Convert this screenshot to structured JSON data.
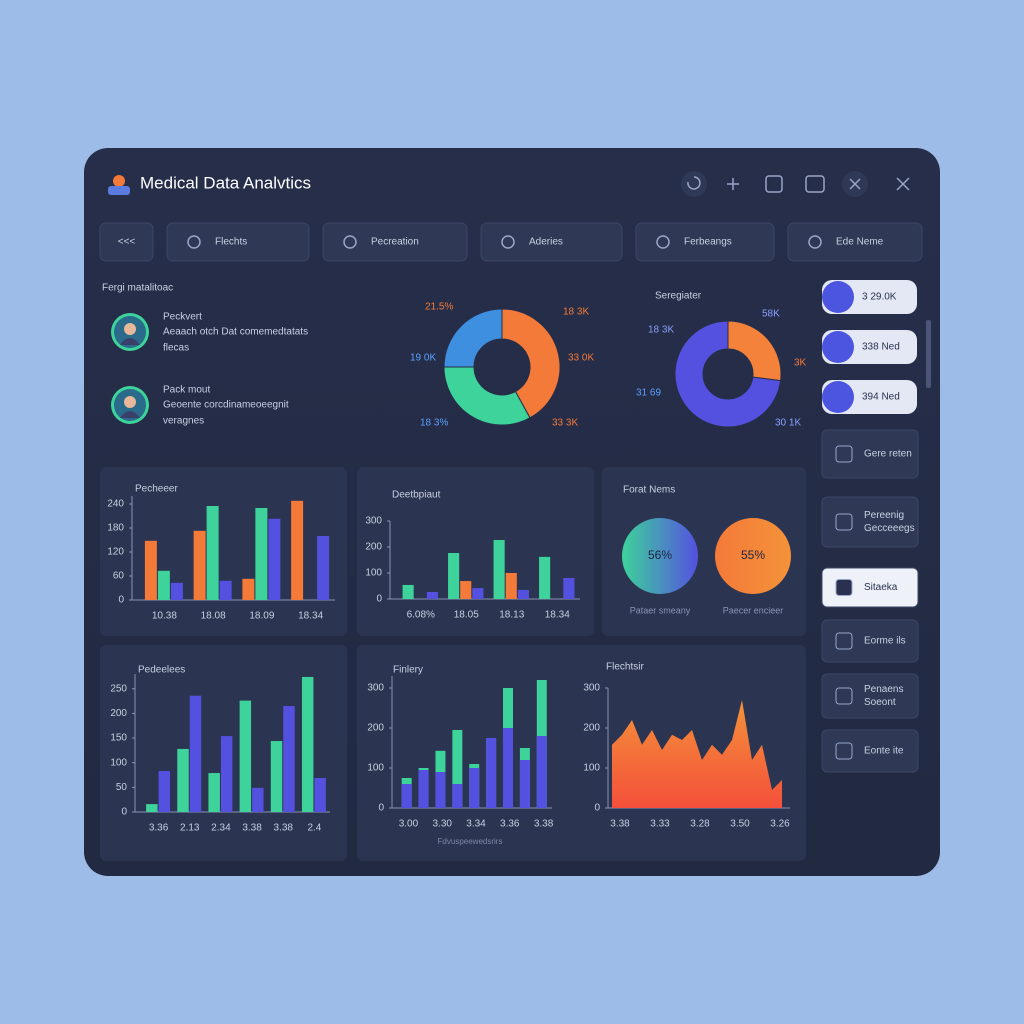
{
  "header": {
    "title": "Medical Data Analvtics"
  },
  "toolbar": [
    "<<<",
    "Flechts",
    "Pecreation",
    "Aderies",
    "Ferbeangs",
    "Ede Neme"
  ],
  "patients": {
    "title": "Fergi matalitoac",
    "items": [
      {
        "name": "Peckvert",
        "lines": [
          "Aeaach otch Dat comemedtatats",
          "flecas"
        ]
      },
      {
        "name": "Pack mout",
        "lines": [
          "Geoente corcdinameoeegnit",
          "veragnes"
        ]
      }
    ]
  },
  "side": {
    "pills": [
      "3 29.0K",
      "338 Ned",
      "394 Ned"
    ],
    "buttons": [
      [
        "Gere reten"
      ],
      [
        "Pereenig",
        "Gecceeegs"
      ],
      [
        "Sitaeka"
      ],
      [
        "Eorme ils"
      ],
      [
        "Penaens",
        "Soeont"
      ],
      [
        "Eonte ite"
      ]
    ],
    "active": 2
  },
  "chart_data": [
    {
      "type": "donut",
      "values": [
        42,
        33,
        25
      ],
      "colors": [
        "#f47a3a",
        "#3ed39a",
        "#3f8fe0"
      ],
      "annotations": [
        {
          "text": "21.5%",
          "color": "#f47a3a"
        },
        {
          "text": "18 3K",
          "color": "#f47a3a"
        },
        {
          "text": "19 0K",
          "color": "#5aa0ff"
        },
        {
          "text": "33 0K",
          "color": "#f47a3a"
        },
        {
          "text": "18 3%",
          "color": "#5aa0ff"
        },
        {
          "text": "33 3K",
          "color": "#f47a3a"
        }
      ]
    },
    {
      "type": "donut",
      "title": "Seregiater",
      "values": [
        27,
        73
      ],
      "colors": [
        "#f4823a",
        "#5451e0"
      ],
      "annotations": [
        {
          "text": "58K",
          "color": "#8aa0ff"
        },
        {
          "text": "18 3K",
          "color": "#8aa0ff"
        },
        {
          "text": "3K",
          "color": "#f47a3a"
        },
        {
          "text": "31 69",
          "color": "#5aa0ff"
        },
        {
          "text": "30 1K",
          "color": "#8aa0ff"
        }
      ]
    },
    {
      "type": "bar",
      "title": "Pecheeer",
      "categories": [
        "10.38",
        "18.08",
        "18.09",
        "18.34"
      ],
      "series": [
        {
          "color": "#f47a3a",
          "values": [
            148,
            173,
            53,
            248
          ]
        },
        {
          "color": "#3ed39a",
          "values": [
            73,
            235,
            230,
            null
          ]
        },
        {
          "color": "#5451e0",
          "values": [
            43,
            48,
            203,
            160
          ]
        }
      ],
      "ylim": [
        0,
        260
      ],
      "yticks": [
        0,
        60,
        120,
        180,
        240
      ]
    },
    {
      "type": "bar",
      "title": "Deetbpiaut",
      "categories": [
        "6.08%",
        "18.05",
        "18.13",
        "18.34"
      ],
      "series": [
        {
          "color": "#3ed39a",
          "values": [
            54,
            177,
            227,
            162
          ]
        },
        {
          "color": "#f47a3a",
          "values": [
            null,
            69,
            100,
            null
          ]
        },
        {
          "color": "#5451e0",
          "values": [
            27,
            42,
            35,
            81
          ]
        }
      ],
      "ylim": [
        0,
        300
      ],
      "yticks": [
        0,
        100,
        200,
        300
      ]
    },
    {
      "type": "pies",
      "title": "Forat Nems",
      "values": [
        56,
        55
      ],
      "value_labels": [
        "56%",
        "55%"
      ],
      "captions": [
        "Pataer smeany",
        "Paecer encieer"
      ],
      "colors": [
        [
          "#3ed39a",
          "#5451e0"
        ],
        [
          "#f47a3a",
          "#f4923a"
        ]
      ]
    },
    {
      "type": "bar",
      "title": "Pedeelees",
      "categories": [
        "3.36",
        "2.13",
        "2.34",
        "3.38",
        "3.38",
        "2.4"
      ],
      "series": [
        {
          "color": "#3ed39a",
          "values": [
            16,
            128,
            79,
            226,
            144,
            274
          ]
        },
        {
          "color": "#5451e0",
          "values": [
            83,
            236,
            154,
            49,
            215,
            69
          ]
        }
      ],
      "ylim": [
        0,
        280
      ],
      "yticks": [
        0,
        50,
        100,
        150,
        200,
        250
      ]
    },
    {
      "type": "bar",
      "title": "Finlery",
      "caption": "Fdvuspeewedsrirs",
      "overlap": true,
      "categories": [
        "3.00",
        null,
        "3.30",
        null,
        "3.34",
        null,
        "3.36",
        null,
        "3.38"
      ],
      "series": [
        {
          "color": "#3ed39a",
          "values": [
            75,
            100,
            143,
            195,
            110,
            175,
            300,
            150,
            320
          ]
        },
        {
          "color": "#5451e0",
          "values": [
            60,
            95,
            90,
            60,
            100,
            175,
            200,
            120,
            180
          ]
        }
      ],
      "ylim": [
        0,
        330
      ],
      "yticks": [
        0,
        100,
        200,
        300
      ]
    },
    {
      "type": "area",
      "title": "Flechtsir",
      "values": [
        158,
        183,
        220,
        158,
        195,
        145,
        183,
        170,
        195,
        120,
        158,
        133,
        170,
        270,
        120,
        158,
        45,
        70
      ],
      "xlabels": [
        "3.38",
        "3.33",
        "3.28",
        "3.50",
        "3.26"
      ],
      "colors": [
        "#f4923a",
        "#f4503a"
      ],
      "ylim": [
        0,
        300
      ],
      "yticks": [
        0,
        100,
        200,
        300
      ]
    }
  ]
}
